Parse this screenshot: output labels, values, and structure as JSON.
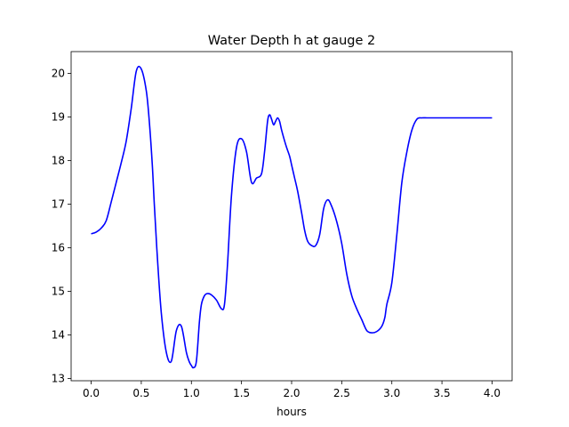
{
  "chart_data": {
    "type": "line",
    "title": "Water Depth h at gauge 2",
    "xlabel": "hours",
    "ylabel": "",
    "xlim": [
      -0.2,
      4.2
    ],
    "ylim": [
      12.95,
      20.5
    ],
    "xticks": [
      0.0,
      0.5,
      1.0,
      1.5,
      2.0,
      2.5,
      3.0,
      3.5,
      4.0
    ],
    "xtick_labels": [
      "0.0",
      "0.5",
      "1.0",
      "1.5",
      "2.0",
      "2.5",
      "3.0",
      "3.5",
      "4.0"
    ],
    "yticks": [
      13,
      14,
      15,
      16,
      17,
      18,
      19,
      20
    ],
    "ytick_labels": [
      "13",
      "14",
      "15",
      "16",
      "17",
      "18",
      "19",
      "20"
    ],
    "grid": false,
    "series": [
      {
        "color": "#0000ff",
        "x": [
          0.0,
          0.05,
          0.1,
          0.15,
          0.2,
          0.25,
          0.3,
          0.35,
          0.4,
          0.45,
          0.5,
          0.55,
          0.58,
          0.61,
          0.63,
          0.66,
          0.7,
          0.75,
          0.8,
          0.85,
          0.9,
          0.95,
          0.98,
          1.0,
          1.02,
          1.05,
          1.08,
          1.1,
          1.13,
          1.16,
          1.2,
          1.25,
          1.3,
          1.33,
          1.36,
          1.4,
          1.45,
          1.5,
          1.55,
          1.6,
          1.65,
          1.7,
          1.73,
          1.76,
          1.78,
          1.8,
          1.82,
          1.84,
          1.86,
          1.88,
          1.9,
          1.93,
          1.95,
          1.98,
          2.0,
          2.03,
          2.06,
          2.1,
          2.13,
          2.16,
          2.2,
          2.24,
          2.28,
          2.32,
          2.36,
          2.4,
          2.45,
          2.5,
          2.55,
          2.6,
          2.65,
          2.7,
          2.75,
          2.8,
          2.85,
          2.9,
          2.93,
          2.95,
          3.0,
          3.05,
          3.1,
          3.15,
          3.2,
          3.25,
          3.3,
          3.35,
          3.4,
          3.45,
          3.5,
          3.55,
          3.6,
          3.65,
          3.68,
          3.7,
          3.72,
          3.75,
          3.8,
          3.85,
          3.9,
          3.95,
          4.0
        ],
        "y": [
          16.32,
          16.36,
          16.45,
          16.62,
          17.05,
          17.5,
          17.95,
          18.45,
          19.2,
          20.05,
          20.1,
          19.6,
          18.9,
          17.9,
          17.0,
          15.8,
          14.5,
          13.6,
          13.4,
          14.1,
          14.2,
          13.6,
          13.38,
          13.3,
          13.25,
          13.4,
          14.3,
          14.7,
          14.9,
          14.95,
          14.92,
          14.8,
          14.6,
          14.7,
          15.6,
          17.2,
          18.3,
          18.5,
          18.2,
          17.5,
          17.6,
          17.7,
          18.2,
          18.9,
          19.05,
          18.95,
          18.82,
          18.9,
          18.98,
          18.9,
          18.7,
          18.45,
          18.3,
          18.1,
          17.9,
          17.6,
          17.3,
          16.8,
          16.4,
          16.15,
          16.05,
          16.05,
          16.3,
          16.9,
          17.1,
          16.95,
          16.6,
          16.1,
          15.4,
          14.9,
          14.6,
          14.35,
          14.1,
          14.05,
          14.08,
          14.2,
          14.4,
          14.7,
          15.2,
          16.3,
          17.5,
          18.2,
          18.7,
          18.95,
          18.98,
          18.98,
          18.98,
          18.98,
          18.98,
          18.98,
          18.98,
          18.98,
          18.98,
          18.98,
          18.98,
          18.98,
          18.98,
          18.98,
          18.98,
          18.98,
          18.98
        ]
      }
    ]
  }
}
